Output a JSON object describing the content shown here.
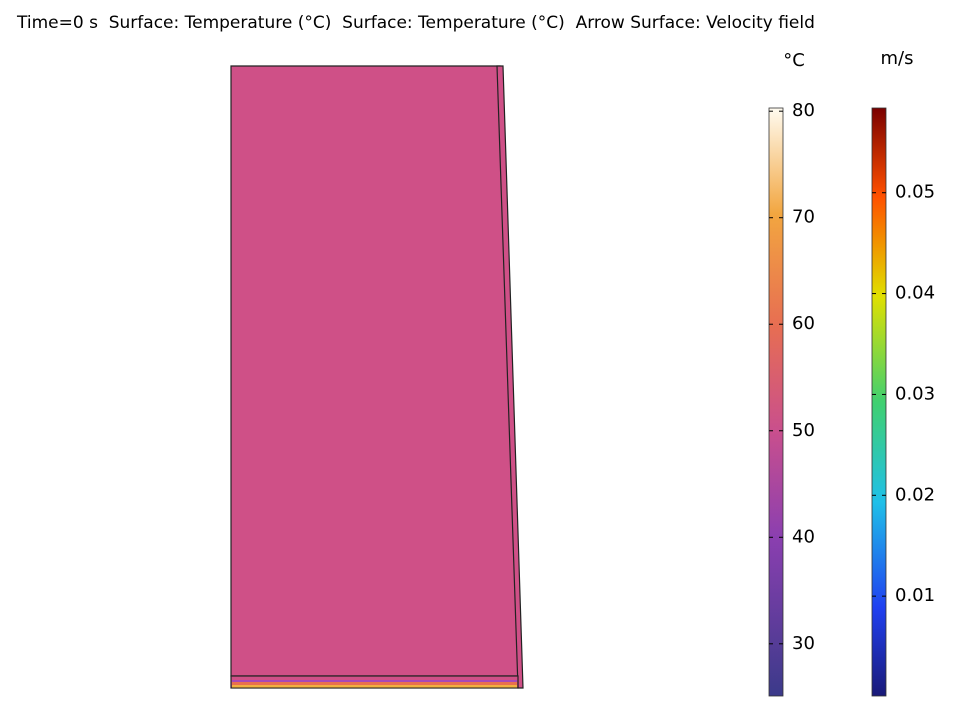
{
  "chart_data": {
    "type": "surface",
    "title": "Time=0 s  Surface: Temperature (°C)  Surface: Temperature (°C)  Arrow Surface: Velocity field",
    "colorbars": [
      {
        "unit": "°C",
        "lim": [
          25.1,
          80.3
        ],
        "ticks": [
          30,
          40,
          50,
          60,
          70,
          80
        ]
      },
      {
        "unit": "m/s",
        "lim": [
          0.0001,
          0.0584
        ],
        "ticks": [
          0.01,
          0.02,
          0.03,
          0.04,
          0.05
        ]
      }
    ]
  }
}
